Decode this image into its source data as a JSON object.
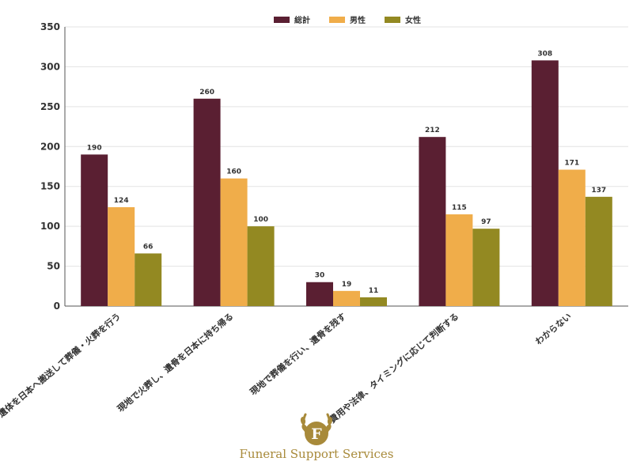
{
  "chart_data": {
    "type": "bar",
    "categories": [
      "遺体を日本へ搬送して葬儀・火葬を行う",
      "現地で火葬し、遺骨を日本に持ち帰る",
      "現地で葬儀を行い、遺骨を残す",
      "費用や法律、タイミングに応じて判断する",
      "わからない"
    ],
    "series": [
      {
        "name": "総計",
        "values": [
          190,
          260,
          30,
          212,
          308
        ],
        "color": "#5a1f32"
      },
      {
        "name": "男性",
        "values": [
          124,
          160,
          19,
          115,
          171
        ],
        "color": "#f0ad4a"
      },
      {
        "name": "女性",
        "values": [
          66,
          100,
          11,
          97,
          137
        ],
        "color": "#938922"
      }
    ],
    "yticks": [
      0,
      50,
      100,
      150,
      200,
      250,
      300,
      350
    ],
    "ylim": [
      0,
      350
    ],
    "grid": true,
    "legend": "top-center",
    "title": "",
    "xlabel": "",
    "ylabel": ""
  },
  "brand": {
    "logo_letter": "F",
    "name": "Funeral Support Services",
    "color": "#a88a3a"
  }
}
